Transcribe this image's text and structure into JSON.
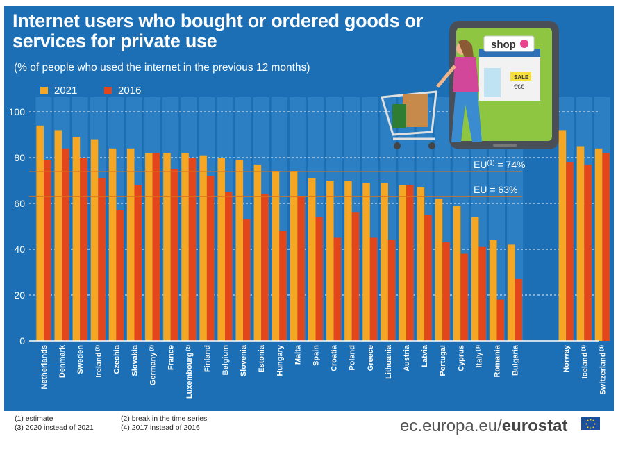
{
  "title": "Internet users who bought or ordered goods or services for private use",
  "subtitle": "(% of people who used the internet in the previous 12 months)",
  "colors": {
    "background": "#1c6fb5",
    "series2021": "#f5a623",
    "series2016": "#e3461b",
    "refline": "#d9701b",
    "stripe": "#3a8ccc"
  },
  "footnotes": {
    "n1": "(1) estimate",
    "n2": "(2) break in the time series",
    "n3": "(3) 2020 instead of 2021",
    "n4": "(4) 2017 instead of 2016"
  },
  "brand": {
    "domain": "ec.europa.eu/",
    "name": "eurostat"
  },
  "illustration": {
    "shop_sign": "shop",
    "sale_sign": "SALE",
    "price_tag": "€€€"
  },
  "chart_data": {
    "type": "bar",
    "ylim": [
      0,
      100
    ],
    "yticks": [
      0,
      20,
      40,
      60,
      80,
      100
    ],
    "grid": true,
    "legend_position": "top-left",
    "categories": [
      {
        "label": "Netherlands",
        "note": ""
      },
      {
        "label": "Denmark",
        "note": ""
      },
      {
        "label": "Sweden",
        "note": ""
      },
      {
        "label": "Ireland",
        "note": "(2)"
      },
      {
        "label": "Czechia",
        "note": ""
      },
      {
        "label": "Slovakia",
        "note": ""
      },
      {
        "label": "Germany",
        "note": "(2)"
      },
      {
        "label": "France",
        "note": ""
      },
      {
        "label": "Luxembourg",
        "note": "(2)"
      },
      {
        "label": "Finland",
        "note": ""
      },
      {
        "label": "Belgium",
        "note": ""
      },
      {
        "label": "Slovenia",
        "note": ""
      },
      {
        "label": "Estonia",
        "note": ""
      },
      {
        "label": "Hungary",
        "note": ""
      },
      {
        "label": "Malta",
        "note": ""
      },
      {
        "label": "Spain",
        "note": ""
      },
      {
        "label": "Croatia",
        "note": ""
      },
      {
        "label": "Poland",
        "note": ""
      },
      {
        "label": "Greece",
        "note": ""
      },
      {
        "label": "Lithuania",
        "note": ""
      },
      {
        "label": "Austria",
        "note": ""
      },
      {
        "label": "Latvia",
        "note": ""
      },
      {
        "label": "Portugal",
        "note": ""
      },
      {
        "label": "Cyprus",
        "note": ""
      },
      {
        "label": "Italy",
        "note": "(3)"
      },
      {
        "label": "Romania",
        "note": ""
      },
      {
        "label": "Bulgaria",
        "note": ""
      },
      {
        "label": "Norway",
        "note": ""
      },
      {
        "label": "Iceland",
        "note": "(4)"
      },
      {
        "label": "Switzerland",
        "note": "(4)"
      }
    ],
    "series": [
      {
        "name": "2021",
        "values": [
          94,
          92,
          89,
          88,
          84,
          84,
          82,
          82,
          82,
          81,
          80,
          79,
          77,
          74,
          74,
          71,
          70,
          70,
          69,
          69,
          68,
          67,
          62,
          59,
          54,
          44,
          42,
          92,
          85,
          84
        ]
      },
      {
        "name": "2016",
        "values": [
          79,
          84,
          80,
          71,
          57,
          68,
          82,
          75,
          80,
          72,
          65,
          53,
          64,
          48,
          63,
          54,
          45,
          56,
          45,
          44,
          68,
          55,
          43,
          38,
          41,
          18,
          27,
          78,
          77,
          82
        ]
      }
    ],
    "reference_lines": [
      {
        "label": "EU",
        "note": "(1)",
        "text": " = 74%",
        "value": 74
      },
      {
        "label": "EU",
        "note": "",
        "text": " = 63%",
        "value": 63
      }
    ]
  }
}
